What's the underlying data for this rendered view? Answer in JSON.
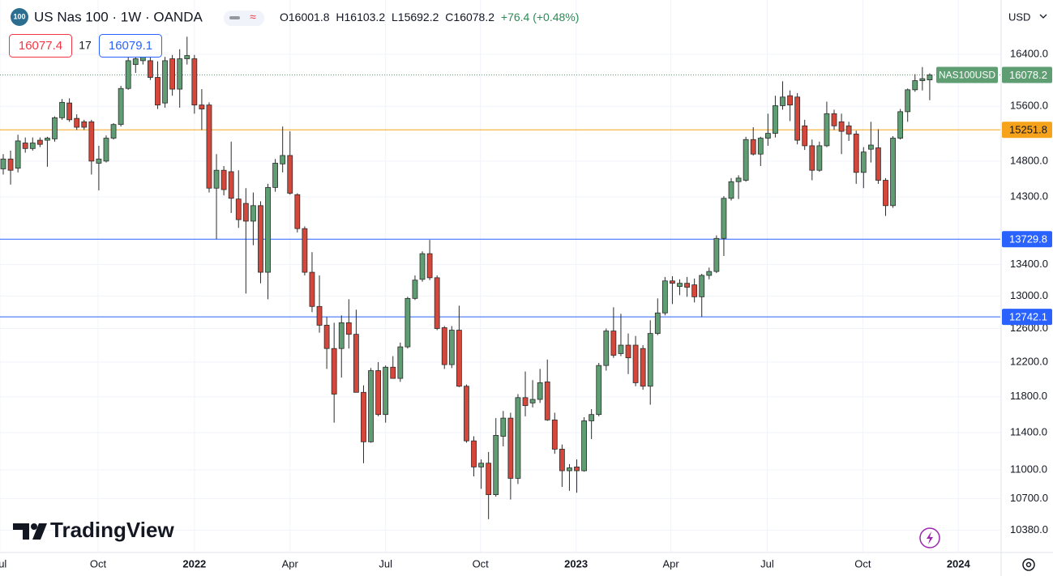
{
  "header": {
    "icon": "100",
    "symbol": "US Nas 100 · 1W · OANDA",
    "ohlc": [
      "O16001.8",
      "H16103.2",
      "L15692.2",
      "C16078.2",
      "+76.4 (+0.48%)"
    ],
    "sell": "16077.4",
    "spread": "17",
    "buy": "16079.1",
    "currency": "USD",
    "brand": "TradingView"
  },
  "chart_data": {
    "type": "candlestick",
    "log_scale": true,
    "grid": true,
    "up_color": "#5f9e73",
    "down_color": "#d5473a",
    "outline_color": "#2b2b2b",
    "xlim": [
      -0.44,
      135.6
    ],
    "xticks": [
      {
        "value": -0.44,
        "label": "Jul"
      },
      {
        "value": 12.9,
        "label": "Oct"
      },
      {
        "value": 26,
        "label": "2022"
      },
      {
        "value": 39,
        "label": "Apr"
      },
      {
        "value": 52,
        "label": "Jul"
      },
      {
        "value": 64.9,
        "label": "Oct"
      },
      {
        "value": 77.9,
        "label": "2023"
      },
      {
        "value": 90.8,
        "label": "Apr"
      },
      {
        "value": 103.9,
        "label": "Jul"
      },
      {
        "value": 116.9,
        "label": "Oct"
      },
      {
        "value": 129.9,
        "label": "2024"
      }
    ],
    "ylim": [
      10167,
      17279
    ],
    "yticks": [
      {
        "value": 16400,
        "label": "16400.0"
      },
      {
        "value": 15600,
        "label": "15600.0"
      },
      {
        "value": 14800,
        "label": "14800.0"
      },
      {
        "value": 14300,
        "label": "14300.0"
      },
      {
        "value": 13400,
        "label": "13400.0"
      },
      {
        "value": 13000,
        "label": "13000.0"
      },
      {
        "value": 12600,
        "label": "12600.0"
      },
      {
        "value": 12200,
        "label": "12200.0"
      },
      {
        "value": 11800,
        "label": "11800.0"
      },
      {
        "value": 11400,
        "label": "11400.0"
      },
      {
        "value": 11000,
        "label": "11000.0"
      },
      {
        "value": 10700,
        "label": "10700.0"
      },
      {
        "value": 10380,
        "label": "10380.0"
      }
    ],
    "levels": [
      {
        "value": 15251.8,
        "color": "#f7a21b"
      },
      {
        "value": 13729.8,
        "color": "#2962ff"
      },
      {
        "value": 12742.1,
        "color": "#2962ff"
      }
    ],
    "last_price": {
      "name": "NAS100USD",
      "value": 16078.2,
      "color": "#5f9e73"
    },
    "open": [
      14690,
      14830,
      14700,
      15060,
      14980,
      15100,
      15100,
      15120,
      15430,
      15650,
      15420,
      15370,
      15370,
      14770,
      14800,
      15130,
      15330,
      15870,
      16240,
      16300,
      16300,
      16040,
      15650,
      16330,
      15860,
      16330,
      16330,
      15620,
      15620,
      14420,
      14670,
      14650,
      14270,
      14210,
      13970,
      14180,
      13300,
      14430,
      14760,
      14880,
      14330,
      13870,
      13300,
      12870,
      12640,
      12360,
      12360,
      12670,
      12530,
      11850,
      11300,
      12100,
      11600,
      12140,
      12010,
      12380,
      12970,
      13210,
      13540,
      13230,
      12610,
      12170,
      12580,
      11920,
      11310,
      11030,
      11070,
      10740,
      11360,
      11560,
      10910,
      11790,
      11730,
      11770,
      11970,
      11540,
      11220,
      10990,
      11030,
      10990,
      11530,
      11600,
      12160,
      12570,
      12300,
      12400,
      12400,
      12360,
      11920,
      12540,
      12790,
      13190,
      13120,
      13160,
      13140,
      12990,
      13260,
      13310,
      13740,
      14280,
      14510,
      14530,
      15110,
      14900,
      15130,
      15200,
      15610,
      15760,
      15740,
      15310,
      15020,
      14670,
      15020,
      15490,
      15370,
      15310,
      15190,
      14640,
      14970,
      14990,
      14530,
      14180,
      15130,
      15520,
      15850,
      15990,
      16001.8
    ],
    "high": [
      14900,
      14950,
      15180,
      15140,
      15140,
      15140,
      15150,
      15450,
      15710,
      15720,
      15480,
      15400,
      15400,
      15020,
      15170,
      15350,
      15910,
      16490,
      16400,
      16650,
      16360,
      16290,
      16360,
      16390,
      16480,
      16680,
      16390,
      15860,
      15660,
      14900,
      14730,
      15080,
      14670,
      14420,
      14360,
      14240,
      14480,
      14830,
      15300,
      15230,
      14350,
      13900,
      13560,
      13260,
      12740,
      12670,
      12760,
      12960,
      12830,
      11930,
      12130,
      12200,
      12160,
      12270,
      12430,
      12990,
      13260,
      13570,
      13720,
      13260,
      12630,
      12630,
      12880,
      11940,
      11360,
      11110,
      11190,
      11560,
      11640,
      11620,
      11830,
      12090,
      11990,
      12120,
      12230,
      11620,
      11270,
      11060,
      11110,
      11570,
      11660,
      12190,
      12600,
      12860,
      12780,
      12540,
      12510,
      12400,
      12700,
      12970,
      13240,
      13250,
      13210,
      13240,
      13220,
      13280,
      13360,
      13780,
      14310,
      14560,
      14600,
      15150,
      15290,
      15150,
      15490,
      15760,
      15980,
      15840,
      15800,
      15400,
      15110,
      15080,
      15670,
      15550,
      15490,
      15370,
      15240,
      15000,
      15370,
      15260,
      14560,
      15160,
      15560,
      15870,
      16090,
      16200,
      16103.2
    ],
    "low": [
      14610,
      14470,
      14640,
      14920,
      14950,
      15000,
      14720,
      15080,
      15400,
      15370,
      15250,
      15250,
      14610,
      14390,
      14780,
      15110,
      15300,
      15850,
      16110,
      16240,
      16000,
      15560,
      15580,
      15760,
      15580,
      16240,
      15490,
      15250,
      14360,
      13730,
      14320,
      14080,
      13880,
      13030,
      13650,
      13160,
      12960,
      14370,
      14640,
      14330,
      13820,
      13260,
      12800,
      12550,
      12120,
      11510,
      12020,
      12360,
      11850,
      11070,
      11290,
      11580,
      11510,
      12010,
      11970,
      12360,
      12950,
      13180,
      13200,
      12580,
      12120,
      12130,
      11910,
      11290,
      10930,
      10800,
      10490,
      10720,
      11250,
      10690,
      10850,
      11580,
      11680,
      11730,
      11530,
      11170,
      10820,
      10780,
      10760,
      10980,
      11330,
      11580,
      12100,
      12250,
      12270,
      12060,
      11920,
      11880,
      11710,
      12520,
      12760,
      12900,
      13010,
      12990,
      12920,
      12740,
      13210,
      13290,
      13510,
      14250,
      14270,
      14510,
      14880,
      14730,
      15020,
      15140,
      15550,
      15380,
      15040,
      14960,
      14530,
      14650,
      15000,
      15250,
      14900,
      15090,
      14480,
      14420,
      14780,
      14480,
      14040,
      14150,
      15110,
      15370,
      15820,
      15840,
      15692.2
    ],
    "close": [
      14830,
      14670,
      15090,
      14980,
      15060,
      15040,
      15130,
      15430,
      15660,
      15400,
      15290,
      15290,
      14800,
      14830,
      15130,
      15330,
      15870,
      16300,
      16330,
      16560,
      16040,
      15620,
      16300,
      15860,
      16330,
      16380,
      15620,
      15560,
      14420,
      14670,
      14400,
      14280,
      13990,
      13970,
      14180,
      13300,
      14430,
      14770,
      14880,
      14350,
      13870,
      13300,
      12870,
      12640,
      12360,
      11830,
      12670,
      12530,
      11850,
      11300,
      12100,
      11600,
      12140,
      12010,
      12380,
      12970,
      13200,
      13540,
      13230,
      12600,
      12170,
      12580,
      11920,
      11310,
      11030,
      11070,
      10740,
      11370,
      11560,
      10910,
      11790,
      11700,
      11770,
      11960,
      11540,
      11220,
      10990,
      11020,
      10990,
      11530,
      11600,
      12160,
      12570,
      12280,
      12400,
      12250,
      11960,
      11920,
      12540,
      12790,
      13190,
      13160,
      13160,
      13110,
      12990,
      13260,
      13310,
      13740,
      14280,
      14510,
      14560,
      15110,
      14900,
      15130,
      15200,
      15610,
      15740,
      15620,
      15100,
      15020,
      14670,
      15020,
      15490,
      15310,
      15230,
      15190,
      14640,
      14930,
      15030,
      14530,
      14180,
      15130,
      15520,
      15850,
      15990,
      16020,
      16078.2
    ]
  }
}
